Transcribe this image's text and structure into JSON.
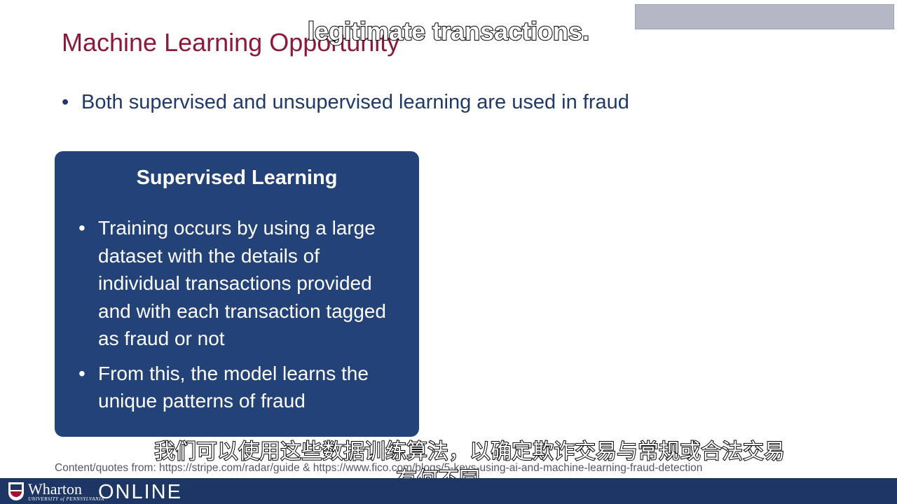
{
  "slide": {
    "title": "Machine Learning Opportunity",
    "bullet": "Both supervised and unsupervised learning are used in fraud",
    "bullet_marker": "•"
  },
  "panel": {
    "heading": "Supervised Learning",
    "items": [
      "Training occurs by using a large dataset with the details of individual transactions provided and with each transaction tagged as fraud or not",
      "From this, the model learns the unique patterns of fraud"
    ]
  },
  "source": "Content/quotes from: https://stripe.com/radar/guide & https://www.fico.com/blogs/5-keys-using-ai-and-machine-learning-fraud-detection",
  "subtitles": {
    "english": "legitimate transactions.",
    "chinese_line1": "我们可以使用这些数据训练算法，以确定欺诈交易与常规或合法交易",
    "chinese_line2": "有何不同。"
  },
  "footer": {
    "brand": "Wharton",
    "brand_sub": "UNIVERSITY of PENNSYLVANIA",
    "online": "ONLINE"
  },
  "colors": {
    "title": "#8b1a3a",
    "bullet_text": "#1f3a68",
    "panel_bg": "#234277",
    "footer_bg": "#1d3663"
  }
}
